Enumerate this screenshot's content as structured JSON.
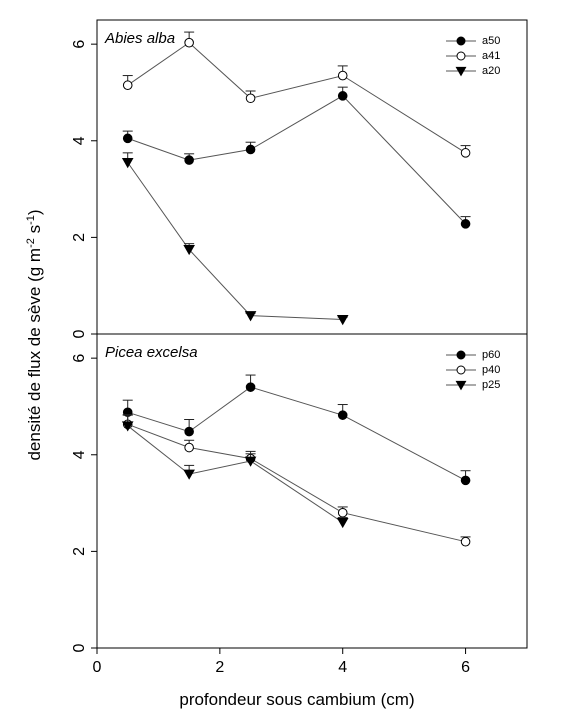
{
  "chart_data": {
    "type": "line",
    "ylabel": {
      "main": "densité de flux de sève (g m",
      "sup1": "-2",
      "mid": " s",
      "sup2": "-1",
      "end": ")"
    },
    "xlabel": "profondeur sous cambium (cm)",
    "xlim": [
      0,
      7
    ],
    "xticks": [
      0,
      2,
      4,
      6
    ],
    "panels": [
      {
        "title": "Abies alba",
        "ylim": [
          0,
          6.5
        ],
        "yticks": [
          0,
          2,
          4,
          6
        ],
        "legend_position": "top-right",
        "series": [
          {
            "name": "a50",
            "marker": "filled-circle",
            "x": [
              0.5,
              1.5,
              2.5,
              4,
              6
            ],
            "y": [
              4.05,
              3.6,
              3.82,
              4.93,
              2.28
            ],
            "err": [
              0.15,
              0.13,
              0.15,
              0.18,
              0.15
            ]
          },
          {
            "name": "a41",
            "marker": "open-circle",
            "x": [
              0.5,
              1.5,
              2.5,
              4,
              6
            ],
            "y": [
              5.15,
              6.03,
              4.88,
              5.35,
              3.75
            ],
            "err": [
              0.2,
              0.22,
              0.15,
              0.2,
              0.15
            ]
          },
          {
            "name": "a20",
            "marker": "filled-triangle",
            "x": [
              0.5,
              1.5,
              2.5,
              4
            ],
            "y": [
              3.55,
              1.75,
              0.38,
              0.3
            ],
            "err": [
              0.2,
              0.12,
              0.05,
              0.05
            ]
          }
        ]
      },
      {
        "title": "Picea excelsa",
        "ylim": [
          0,
          6.5
        ],
        "yticks": [
          0,
          2,
          4,
          6
        ],
        "legend_position": "top-right",
        "series": [
          {
            "name": "p60",
            "marker": "filled-circle",
            "x": [
              0.5,
              1.5,
              2.5,
              4,
              6
            ],
            "y": [
              4.88,
              4.48,
              5.4,
              4.82,
              3.47
            ],
            "err": [
              0.25,
              0.25,
              0.25,
              0.22,
              0.2
            ]
          },
          {
            "name": "p40",
            "marker": "open-circle",
            "x": [
              0.5,
              1.5,
              2.5,
              4,
              6
            ],
            "y": [
              4.63,
              4.15,
              3.92,
              2.8,
              2.2
            ],
            "err": [
              0.2,
              0.15,
              0.15,
              0.12,
              0.1
            ]
          },
          {
            "name": "p25",
            "marker": "filled-triangle",
            "x": [
              0.5,
              1.5,
              2.5,
              4
            ],
            "y": [
              4.6,
              3.6,
              3.87,
              2.6
            ],
            "err": [
              0.22,
              0.18,
              0.15,
              0.1
            ]
          }
        ]
      }
    ]
  }
}
